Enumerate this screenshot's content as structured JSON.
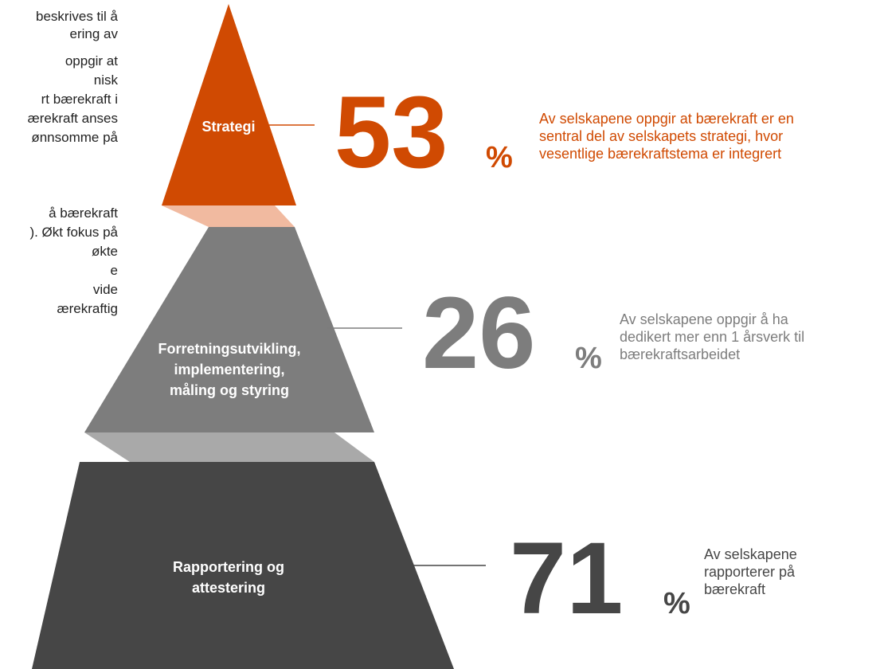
{
  "left_text": [
    "beskrives til å",
    "ering av",
    "oppgir at",
    "nisk",
    "rt bærekraft i",
    "ærekraft anses",
    "ønnsomme på",
    "å bærekraft",
    "). Økt fokus på",
    "økte",
    "e",
    "vide",
    "ærekraftig"
  ],
  "tiers": [
    {
      "label": [
        "Strategi"
      ],
      "value": 53,
      "unit": "%",
      "description": [
        "Av selskapene oppgir at bærekraft er en",
        "sentral del av selskapets strategi, hvor",
        "vesentlige bærekraftstema er integrert"
      ]
    },
    {
      "label": [
        "Forretningsutvikling,",
        "implementering,",
        "måling og styring"
      ],
      "value": 26,
      "unit": "%",
      "description": [
        "Av selskapene oppgir å ha",
        "dedikert mer enn 1 årsverk til",
        "bærekraftsarbeidet"
      ]
    },
    {
      "label": [
        "Rapportering og",
        "attestering"
      ],
      "value": 71,
      "unit": "%",
      "description": [
        "Av selskapene",
        "rapporterer på",
        "bærekraft"
      ]
    }
  ]
}
